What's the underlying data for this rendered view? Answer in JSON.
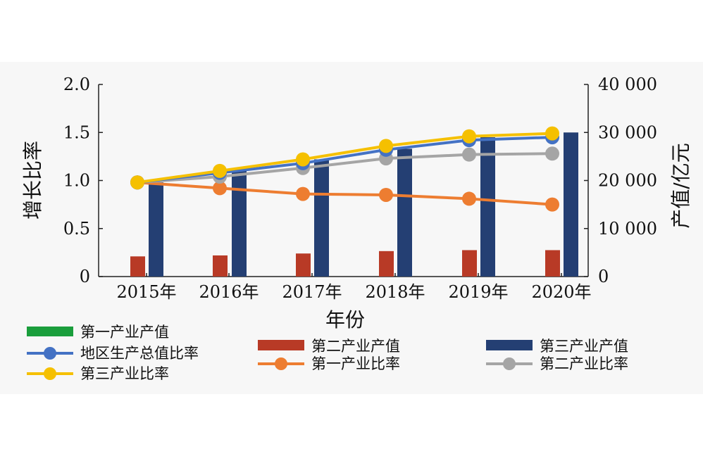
{
  "chart_data": {
    "type": "bar+line",
    "categories": [
      "2015年",
      "2016年",
      "2017年",
      "2018年",
      "2019年",
      "2020年"
    ],
    "xlabel": "年份",
    "ylabel_left": "增长比率",
    "ylabel_right": "产值/亿元",
    "ylim_left": [
      0,
      2.0
    ],
    "ylim_right": [
      0,
      40000
    ],
    "left_ticks": [
      "0",
      "0.5",
      "1.0",
      "1.5",
      "2.0"
    ],
    "left_tick_values": [
      0,
      0.5,
      1.0,
      1.5,
      2.0
    ],
    "right_ticks": [
      "0",
      "10 000",
      "20 000",
      "30 000",
      "40 000"
    ],
    "right_tick_values": [
      0,
      10000,
      20000,
      30000,
      40000
    ],
    "bar_series": [
      {
        "name": "第一产业产值",
        "color": "#1a9e3c",
        "values": [
          0,
          0,
          0,
          0,
          0,
          0
        ]
      },
      {
        "name": "第二产业产值",
        "color": "#b83a26",
        "values": [
          4200,
          4400,
          4800,
          5300,
          5500,
          5500
        ]
      },
      {
        "name": "第三产业产值",
        "color": "#243f73",
        "values": [
          19600,
          22000,
          24400,
          26600,
          29000,
          30000
        ]
      }
    ],
    "line_series": [
      {
        "name": "地区生产总值比率",
        "color": "#4472c4",
        "values": [
          0.98,
          1.08,
          1.18,
          1.32,
          1.42,
          1.45
        ]
      },
      {
        "name": "第一产业比率",
        "color": "#ed7d31",
        "values": [
          0.98,
          0.92,
          0.86,
          0.85,
          0.81,
          0.75
        ]
      },
      {
        "name": "第二产业比率",
        "color": "#a5a5a5",
        "values": [
          0.98,
          1.04,
          1.13,
          1.23,
          1.27,
          1.28
        ]
      },
      {
        "name": "第三产业比率",
        "color": "#f5c000",
        "values": [
          0.98,
          1.1,
          1.22,
          1.36,
          1.46,
          1.49
        ]
      }
    ]
  },
  "legend": [
    {
      "label": "第一产业产值",
      "kind": "bar",
      "color": "#1a9e3c"
    },
    {
      "label": "地区生产总值比率",
      "kind": "line",
      "color": "#4472c4"
    },
    {
      "label": "第三产业比率",
      "kind": "line",
      "color": "#f5c000"
    },
    {
      "label": "第二产业产值",
      "kind": "bar",
      "color": "#b83a26"
    },
    {
      "label": "第一产业比率",
      "kind": "line",
      "color": "#ed7d31"
    },
    {
      "label": "第三产业产值",
      "kind": "bar",
      "color": "#243f73"
    },
    {
      "label": "第二产业比率",
      "kind": "line",
      "color": "#a5a5a5"
    }
  ]
}
